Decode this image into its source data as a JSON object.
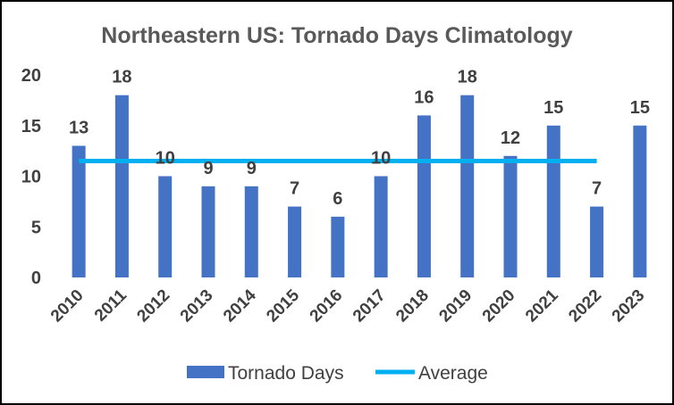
{
  "chart_data": {
    "type": "bar",
    "title": "Northeastern US: Tornado Days Climatology",
    "xlabel": "",
    "ylabel": "",
    "categories": [
      "2010",
      "2011",
      "2012",
      "2013",
      "2014",
      "2015",
      "2016",
      "2017",
      "2018",
      "2019",
      "2020",
      "2021",
      "2022",
      "2023"
    ],
    "series": [
      {
        "name": "Tornado Days",
        "type": "bar",
        "values": [
          13,
          18,
          10,
          9,
          9,
          7,
          6,
          10,
          16,
          18,
          12,
          15,
          7,
          15
        ],
        "color": "#4472C4"
      },
      {
        "name": "Average",
        "type": "line",
        "value": 11.5,
        "color": "#00B0F0"
      }
    ],
    "ylim": [
      0,
      20
    ],
    "yticks": [
      0,
      5,
      10,
      15,
      20
    ],
    "grid": false,
    "legend_position": "bottom"
  }
}
